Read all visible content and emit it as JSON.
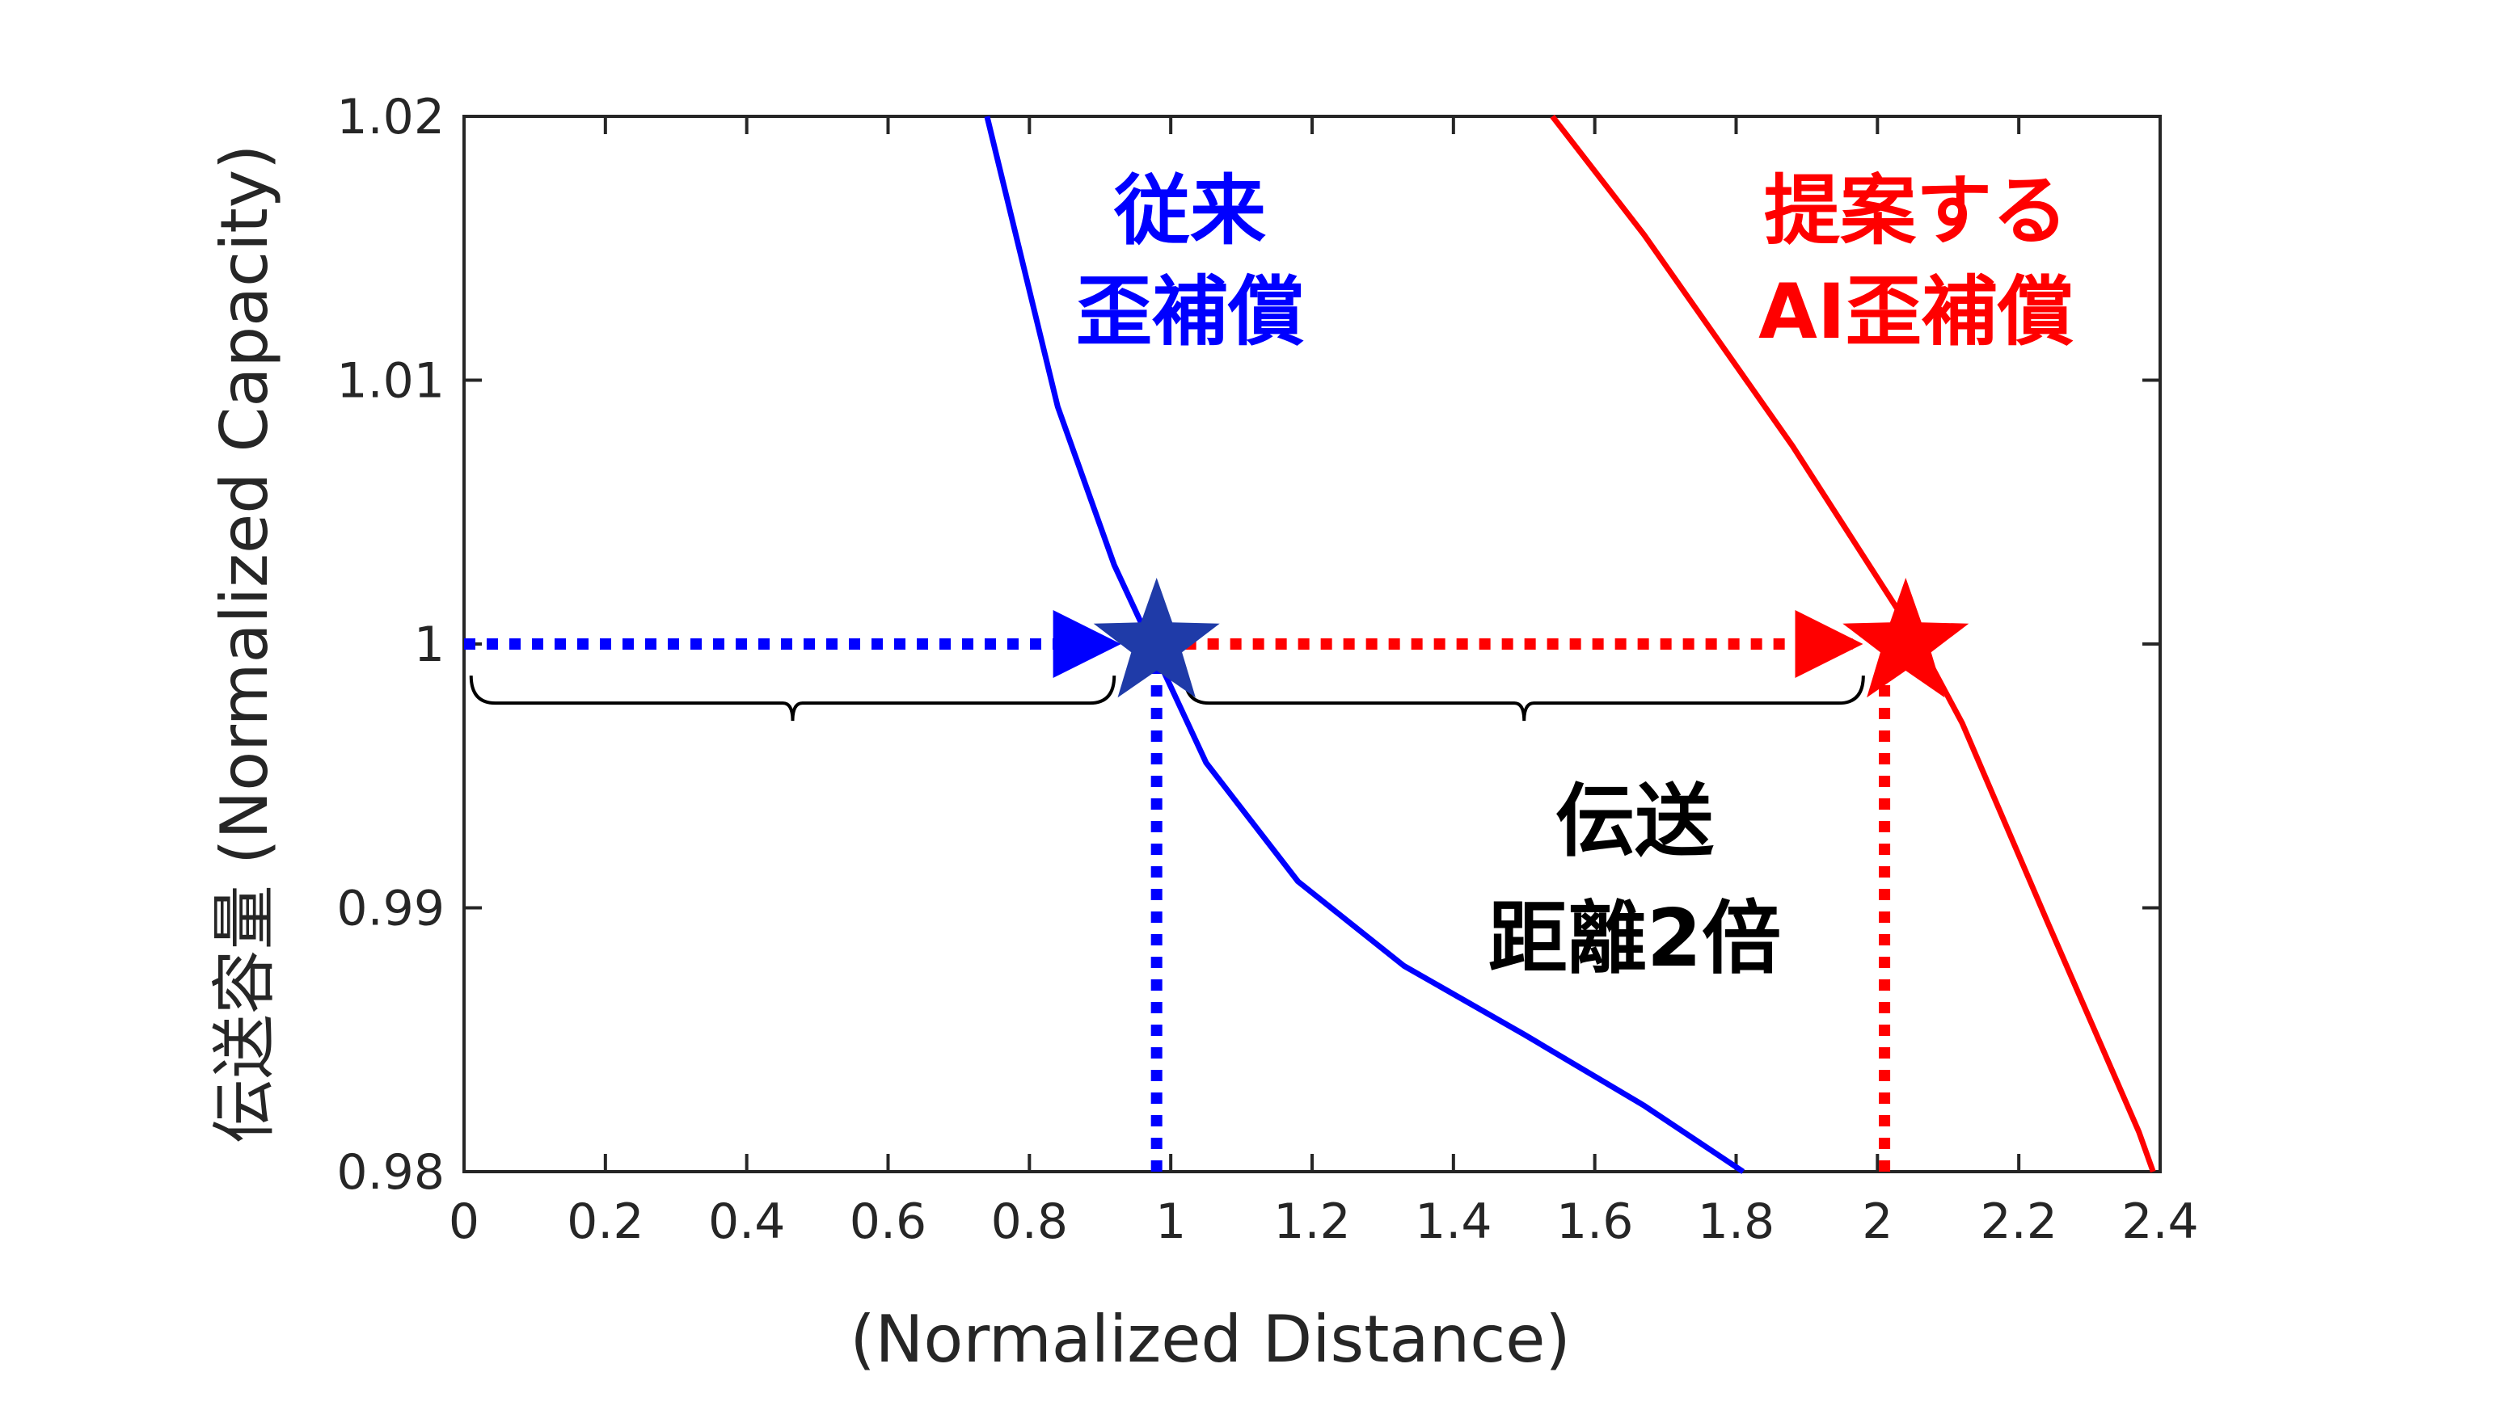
{
  "chart_data": {
    "type": "line",
    "xlabel": "(Normalized Distance)",
    "ylabel": "伝送容量 (Normalized Capacity)",
    "xlim": [
      0,
      2.4
    ],
    "ylim": [
      0.98,
      1.02
    ],
    "xticks": [
      "0",
      "0.2",
      "0.4",
      "0.6",
      "0.8",
      "1",
      "1.2",
      "1.4",
      "1.6",
      "1.8",
      "2",
      "2.2",
      "2.4"
    ],
    "yticks": [
      "0.98",
      "0.99",
      "1",
      "1.01",
      "1.02"
    ],
    "grid": false,
    "series": [
      {
        "color": "#0000ff",
        "x": [
          0.74,
          0.84,
          0.92,
          1.05,
          1.18,
          1.33,
          1.5,
          1.67,
          1.81
        ],
        "y": [
          1.02,
          1.009,
          1.003,
          0.9955,
          0.991,
          0.9878,
          0.9852,
          0.9825,
          0.98
        ]
      },
      {
        "color": "#ff0000",
        "x": [
          1.54,
          1.67,
          1.88,
          2.06,
          2.12,
          2.24,
          2.37,
          2.39
        ],
        "y": [
          1.02,
          1.0155,
          1.0075,
          1.0,
          0.997,
          0.9895,
          0.9815,
          0.98
        ]
      }
    ],
    "markers": [
      {
        "shape": "star",
        "color": "#1f3ba8",
        "x": 0.98,
        "y": 1.0
      },
      {
        "shape": "star",
        "color": "#ff0000",
        "x": 2.04,
        "y": 1.0
      }
    ],
    "arrows": [
      {
        "color": "#0000ff",
        "style": "dotted",
        "from": [
          0,
          1.0
        ],
        "to": [
          0.92,
          1.0
        ]
      },
      {
        "color": "#ff0000",
        "style": "dotted",
        "from": [
          1.02,
          1.0
        ],
        "to": [
          1.97,
          1.0
        ]
      }
    ],
    "guides": [
      {
        "color": "#0000ff",
        "style": "dotted",
        "x": 0.98,
        "from_y": 0.98,
        "to_y": 1.0
      },
      {
        "color": "#ff0000",
        "style": "dotted",
        "x": 2.01,
        "from_y": 0.98,
        "to_y": 0.999
      }
    ],
    "braces": [
      {
        "color": "#000000",
        "x_from": 0.01,
        "x_to": 0.92,
        "y": 0.9988
      },
      {
        "color": "#000000",
        "x_from": 1.02,
        "x_to": 1.98,
        "y": 0.9988
      }
    ],
    "annotations": [
      {
        "lines": [
          "従来",
          "歪補償"
        ],
        "color": "#0000ff"
      },
      {
        "lines": [
          "提案する",
          "AI歪補償"
        ],
        "color": "#ff0000"
      },
      {
        "lines": [
          "伝送",
          "距離2倍"
        ],
        "color": "#000000"
      }
    ]
  }
}
